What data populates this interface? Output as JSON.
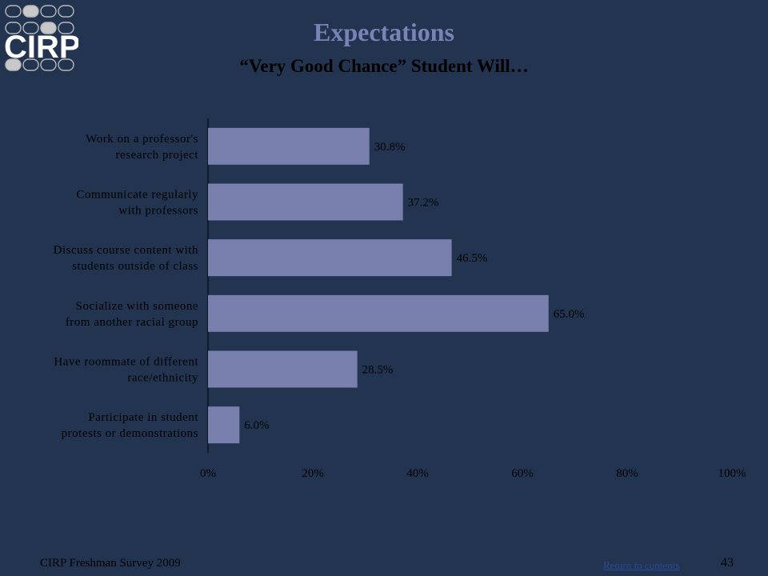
{
  "logo": {
    "text": "CIRP",
    "icon": "cirp-logo"
  },
  "title": "Expectations",
  "subtitle": "“Very Good Chance” Student Will…",
  "footer": {
    "survey": "CIRP Freshman Survey 2009",
    "link": "Return to contents",
    "page": "43"
  },
  "colors": {
    "background": "#22344f",
    "bar": "#7a80ae",
    "title": "#7b83b6"
  },
  "chart_data": {
    "type": "bar",
    "orientation": "horizontal",
    "categories": [
      [
        "Work on a professor's",
        "research project"
      ],
      [
        "Communicate regularly",
        "with professors"
      ],
      [
        "Discuss course content with",
        "students outside of class"
      ],
      [
        "Socialize with someone",
        "from another racial group"
      ],
      [
        "Have roommate of different",
        "race/ethnicity"
      ],
      [
        "Participate in student",
        "protests or demonstrations"
      ]
    ],
    "values": [
      30.8,
      37.2,
      46.5,
      65.0,
      28.5,
      6.0
    ],
    "value_labels": [
      "30.8%",
      "37.2%",
      "46.5%",
      "65.0%",
      "28.5%",
      "6.0%"
    ],
    "xlim": [
      0,
      100
    ],
    "xticks": [
      "0%",
      "20%",
      "40%",
      "60%",
      "80%",
      "100%"
    ],
    "grid": false,
    "legend": "none"
  }
}
